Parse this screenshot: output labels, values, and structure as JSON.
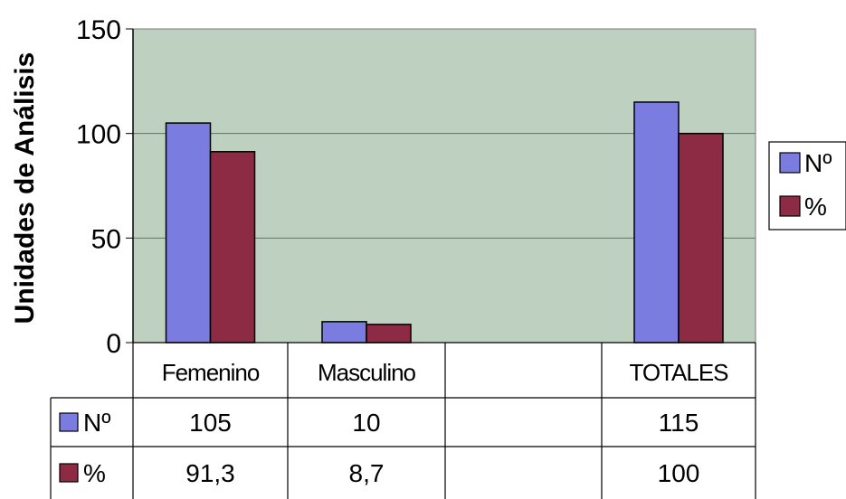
{
  "chart_data": {
    "type": "bar",
    "title": "",
    "xlabel": "",
    "ylabel": "Unidades de Análisis",
    "ylim": [
      0,
      150
    ],
    "yticks": [
      0,
      50,
      100,
      150
    ],
    "grid": true,
    "legend": "right",
    "categories": [
      "Femenino",
      "Masculino",
      "",
      "TOTALES"
    ],
    "series": [
      {
        "name": "Nº",
        "color": "#7b7cdf",
        "values": [
          105,
          10,
          null,
          115
        ]
      },
      {
        "name": "%",
        "color": "#8e2b44",
        "values": [
          91.3,
          8.7,
          null,
          100
        ]
      }
    ],
    "table": {
      "rows": [
        {
          "label": "Nº",
          "cells": [
            "105",
            "10",
            "",
            "115"
          ]
        },
        {
          "label": "%",
          "cells": [
            "91,3",
            "8,7",
            "",
            "100"
          ]
        }
      ]
    }
  }
}
